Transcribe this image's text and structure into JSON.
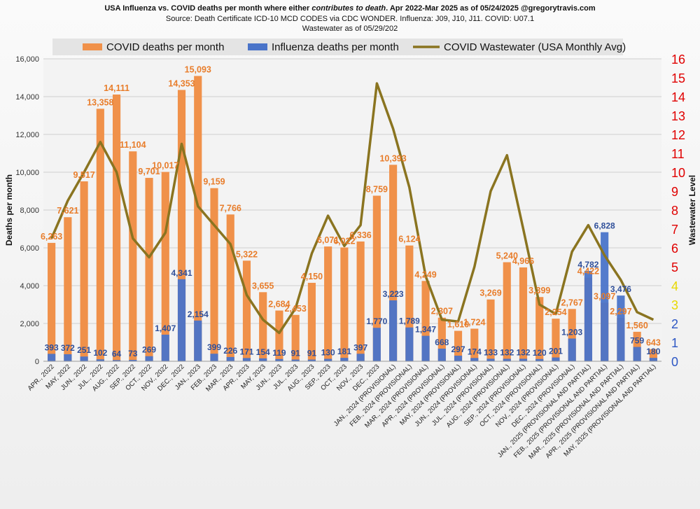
{
  "chart_data": {
    "type": "bar",
    "title": "USA Influenza vs. COVID deaths per month where either contributes to death.  Apr 2022-Mar 2025 as of 05/24/2025 @gregorytravis.com",
    "title_parts": [
      "USA Influenza vs. COVID deaths per month where either ",
      "contributes to death",
      ".  Apr 2022-Mar 2025 as of 05/24/2025 @gregorytravis.com"
    ],
    "subtitle": "Source: Death Certificate ICD-10 MCD CODES via CDC WONDER.  Influenza: J09, J10, J11.  COVID: U07.1",
    "subtitle2": "Wastewater as of 05/29/202",
    "ylabel": "Deaths per month",
    "y2label": "Wastewater Level",
    "ylim": [
      0,
      16000
    ],
    "y2lim": [
      0,
      16
    ],
    "grid": true,
    "legend_position": "top",
    "y_ticks": [
      "0",
      "2,000",
      "4,000",
      "6,000",
      "8,000",
      "10,000",
      "12,000",
      "14,000",
      "16,000"
    ],
    "y2_ticks": [
      "0",
      "1",
      "2",
      "3",
      "4",
      "5",
      "6",
      "7",
      "8",
      "9",
      "10",
      "11",
      "12",
      "13",
      "14",
      "15",
      "16"
    ],
    "y2_tick_colors": [
      "#2d57c4",
      "#2d57c4",
      "#2d57c4",
      "#e8d800",
      "#e8d800",
      "#e00000",
      "#e00000",
      "#e00000",
      "#e00000",
      "#e00000",
      "#e00000",
      "#e00000",
      "#e00000",
      "#e00000",
      "#e00000",
      "#e00000",
      "#e00000"
    ],
    "categories": [
      "APR., 2022",
      "MAY, 2022",
      "JUN., 2022",
      "JUL., 2022",
      "AUG., 2022",
      "SEP., 2022",
      "OCT., 2022",
      "NOV., 2022",
      "DEC., 2022",
      "JAN., 2023",
      "FEB., 2023",
      "MAR., 2023",
      "APR., 2023",
      "MAY, 2023",
      "JUN., 2023",
      "JUL., 2023",
      "AUG., 2023",
      "SEP., 2023",
      "OCT., 2023",
      "NOV., 2023",
      "DEC., 2023",
      "JAN., 2024 (PROVISIONAL)",
      "FEB., 2024 (PROVISIONAL)",
      "MAR., 2024 (PROVISIONAL)",
      "APR., 2024 (PROVISIONAL)",
      "MAY, 2024 (PROVISIONAL)",
      "JUN., 2024 (PROVISIONAL)",
      "JUL., 2024 (PROVISIONAL)",
      "AUG., 2024 (PROVISIONAL)",
      "SEP., 2024 (PROVISIONAL)",
      "OCT., 2024 (PROVISIONAL)",
      "NOV., 2024 (PROVISIONAL)",
      "DEC., 2024 (PROVISIONAL)",
      "JAN., 2025 (PROVISIONAL AND PARTIAL)",
      "FEB., 2025 (PROVISIONAL AND PARTIAL)",
      "MAR., 2025 (PROVISIONAL AND PARTIAL)",
      "APR., 2025 (PROVISIONAL AND PARTIAL)",
      "MAY, 2025 (PROVISIONAL AND PARTIAL)"
    ],
    "series": [
      {
        "name": "COVID deaths per month",
        "kind": "bar",
        "color": "#f0914a",
        "label_color": "#e87d2b",
        "values": [
          6263,
          7621,
          9517,
          13358,
          14111,
          11104,
          9701,
          10017,
          14353,
          15093,
          9159,
          7766,
          5322,
          3655,
          2684,
          2453,
          4150,
          6071,
          6022,
          6336,
          8759,
          10393,
          6124,
          4249,
          2307,
          1610,
          1724,
          3269,
          5240,
          4966,
          3399,
          2254,
          2767,
          4422,
          3097,
          2297,
          1560,
          643
        ]
      },
      {
        "name": "Influenza deaths per month",
        "kind": "bar",
        "color": "#4a74c9",
        "label_color": "#2f4f9a",
        "values": [
          393,
          372,
          251,
          102,
          64,
          73,
          269,
          1407,
          4341,
          2154,
          399,
          226,
          171,
          154,
          119,
          91,
          91,
          130,
          181,
          397,
          1770,
          3223,
          1789,
          1347,
          668,
          297,
          174,
          133,
          132,
          132,
          120,
          201,
          1203,
          4782,
          6828,
          3476,
          759,
          180
        ]
      },
      {
        "name": "COVID Wastewater (USA Monthly Avg)",
        "kind": "line",
        "axis": "right",
        "color": "#8a7420",
        "values": [
          6.5,
          8.5,
          10.0,
          11.6,
          10.0,
          6.5,
          5.5,
          6.8,
          11.5,
          8.2,
          7.2,
          6.2,
          3.5,
          2.2,
          1.5,
          2.8,
          5.7,
          7.7,
          6.1,
          7.2,
          14.7,
          12.3,
          9.2,
          4.5,
          2.2,
          2.1,
          5.0,
          9.0,
          10.9,
          7.0,
          3.0,
          2.5,
          5.8,
          7.2,
          5.6,
          4.3,
          2.6,
          2.2
        ]
      }
    ]
  }
}
